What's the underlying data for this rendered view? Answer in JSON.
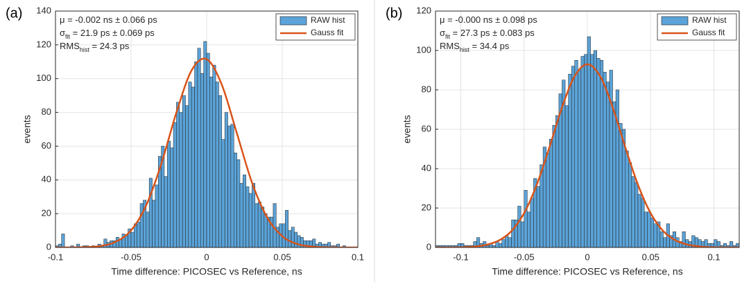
{
  "chart_data": [
    {
      "type": "histogram",
      "panel_label": "(a)",
      "x_label": "Time difference: PICOSEC vs Reference, ns",
      "y_label": "events",
      "annotations": [
        [
          {
            "text": "μ = -0.002 ns ± 0.066 ps"
          }
        ],
        [
          {
            "text": "σ"
          },
          {
            "sub": "fit"
          },
          {
            "text": " = 21.9 ps ± 0.069 ps"
          }
        ],
        [
          {
            "text": "RMS"
          },
          {
            "sub": "hist"
          },
          {
            "text": " = 24.3 ps"
          }
        ]
      ],
      "bins": [
        -0.1,
        -0.098,
        -0.096,
        -0.094,
        -0.092,
        -0.09,
        -0.088,
        -0.086,
        -0.084,
        -0.082,
        -0.08,
        -0.078,
        -0.076,
        -0.074,
        -0.072,
        -0.07,
        -0.068,
        -0.066,
        -0.064,
        -0.062,
        -0.06,
        -0.058,
        -0.056,
        -0.054,
        -0.052,
        -0.05,
        -0.048,
        -0.046,
        -0.044,
        -0.042,
        -0.04,
        -0.038,
        -0.036,
        -0.034,
        -0.032,
        -0.03,
        -0.028,
        -0.026,
        -0.024,
        -0.022,
        -0.02,
        -0.018,
        -0.016,
        -0.014,
        -0.012,
        -0.01,
        -0.008,
        -0.006,
        -0.004,
        -0.002,
        0,
        0.002,
        0.004,
        0.006,
        0.008,
        0.01,
        0.012,
        0.014,
        0.016,
        0.018,
        0.02,
        0.022,
        0.024,
        0.026,
        0.028,
        0.03,
        0.032,
        0.034,
        0.036,
        0.038,
        0.04,
        0.042,
        0.044,
        0.046,
        0.048,
        0.05,
        0.052,
        0.054,
        0.056,
        0.058,
        0.06,
        0.062,
        0.064,
        0.066,
        0.068,
        0.07,
        0.072,
        0.074,
        0.076,
        0.078,
        0.08,
        0.082,
        0.084,
        0.086,
        0.088,
        0.09,
        0.092,
        0.094,
        0.096,
        0.098,
        0.1
      ],
      "series": [
        {
          "name": "RAW hist",
          "color": "#5ba3d8",
          "values": [
            1,
            2,
            8,
            0,
            0,
            1,
            0,
            2,
            0,
            1,
            1,
            0,
            1,
            0,
            2,
            1,
            5,
            3,
            4,
            4,
            6,
            5,
            8,
            7,
            11,
            9,
            14,
            15,
            26,
            28,
            21,
            41,
            28,
            37,
            54,
            60,
            42,
            63,
            59,
            74,
            86,
            80,
            90,
            84,
            98,
            95,
            110,
            118,
            103,
            122,
            115,
            101,
            108,
            98,
            90,
            64,
            80,
            72,
            73,
            56,
            52,
            38,
            43,
            36,
            32,
            38,
            26,
            27,
            24,
            20,
            18,
            18,
            26,
            12,
            14,
            14,
            22,
            10,
            12,
            9,
            7,
            6,
            4,
            4,
            4,
            5,
            2,
            3,
            2,
            2,
            3,
            1,
            1,
            2,
            0,
            1,
            0,
            0,
            0,
            0
          ]
        },
        {
          "name": "Gauss fit",
          "color": "#d95319",
          "type": "line",
          "x": [
            -0.1,
            -0.09,
            -0.08,
            -0.07,
            -0.06,
            -0.05,
            -0.04,
            -0.03,
            -0.02,
            -0.01,
            0,
            0.01,
            0.02,
            0.03,
            0.04,
            0.05,
            0.06,
            0.07,
            0.08,
            0.09,
            0.1
          ],
          "values": [
            0,
            0,
            0.2,
            0.9,
            3.4,
            10.1,
            24.9,
            49.5,
            79.9,
            104.8,
            111.5,
            96.4,
            67.6,
            38.4,
            17.8,
            6.7,
            2,
            0.5,
            0.1,
            0,
            0
          ]
        }
      ],
      "xlim": [
        -0.1,
        0.1
      ],
      "ylim": [
        0,
        140
      ],
      "xticks": [
        -0.1,
        -0.05,
        0,
        0.05,
        0.1
      ],
      "yticks": [
        0,
        20,
        40,
        60,
        80,
        100,
        120,
        140
      ],
      "grid": true,
      "legend": "upper right"
    },
    {
      "type": "histogram",
      "panel_label": "(b)",
      "x_label": "Time difference: PICOSEC vs Reference, ns",
      "y_label": "events",
      "annotations": [
        [
          {
            "text": "μ = -0.000 ns ± 0.098 ps"
          }
        ],
        [
          {
            "text": "σ"
          },
          {
            "sub": "fit"
          },
          {
            "text": " = 27.3 ps ± 0.083 ps"
          }
        ],
        [
          {
            "text": "RMS"
          },
          {
            "sub": "hist"
          },
          {
            "text": " = 34.4 ps"
          }
        ]
      ],
      "bins": [
        -0.12,
        -0.1175,
        -0.115,
        -0.1125,
        -0.11,
        -0.1075,
        -0.105,
        -0.1025,
        -0.1,
        -0.0975,
        -0.095,
        -0.0925,
        -0.09,
        -0.0875,
        -0.085,
        -0.0825,
        -0.08,
        -0.0775,
        -0.075,
        -0.0725,
        -0.07,
        -0.0675,
        -0.065,
        -0.0625,
        -0.06,
        -0.0575,
        -0.055,
        -0.0525,
        -0.05,
        -0.0475,
        -0.045,
        -0.0425,
        -0.04,
        -0.0375,
        -0.035,
        -0.0325,
        -0.03,
        -0.0275,
        -0.025,
        -0.0225,
        -0.02,
        -0.0175,
        -0.015,
        -0.0125,
        -0.01,
        -0.0075,
        -0.005,
        -0.0025,
        0,
        0.0025,
        0.005,
        0.0075,
        0.01,
        0.0125,
        0.015,
        0.0175,
        0.02,
        0.0225,
        0.025,
        0.0275,
        0.03,
        0.0325,
        0.035,
        0.0375,
        0.04,
        0.0425,
        0.045,
        0.0475,
        0.05,
        0.0525,
        0.055,
        0.0575,
        0.06,
        0.0625,
        0.065,
        0.0675,
        0.07,
        0.0725,
        0.075,
        0.0775,
        0.08,
        0.0825,
        0.085,
        0.0875,
        0.09,
        0.0925,
        0.095,
        0.0975,
        0.1,
        0.1025,
        0.105,
        0.1075,
        0.11,
        0.1125,
        0.115,
        0.1175,
        0.12
      ],
      "series": [
        {
          "name": "RAW hist",
          "color": "#5ba3d8",
          "values": [
            1,
            1,
            1,
            1,
            1,
            1,
            1,
            2,
            2,
            1,
            1,
            1,
            3,
            5,
            2,
            3,
            1,
            2,
            1,
            3,
            2,
            4,
            6,
            5,
            14,
            14,
            21,
            13,
            29,
            18,
            25,
            35,
            31,
            42,
            51,
            48,
            55,
            62,
            67,
            78,
            85,
            72,
            88,
            92,
            95,
            90,
            97,
            98,
            107,
            98,
            100,
            96,
            95,
            89,
            84,
            90,
            74,
            80,
            63,
            60,
            49,
            43,
            36,
            33,
            27,
            25,
            18,
            18,
            15,
            12,
            13,
            8,
            5,
            12,
            6,
            8,
            5,
            3,
            8,
            4,
            3,
            6,
            5,
            4,
            3,
            4,
            2,
            2,
            4,
            3,
            1,
            2,
            1,
            3,
            1,
            2
          ]
        },
        {
          "name": "Gauss fit",
          "color": "#d95319",
          "type": "line",
          "x": [
            -0.12,
            -0.11,
            -0.1,
            -0.09,
            -0.08,
            -0.07,
            -0.06,
            -0.05,
            -0.04,
            -0.03,
            -0.02,
            -0.01,
            0,
            0.01,
            0.02,
            0.03,
            0.04,
            0.05,
            0.06,
            0.07,
            0.08,
            0.09,
            0.1,
            0.11,
            0.12
          ],
          "values": [
            0,
            0,
            0.1,
            0.4,
            1.3,
            3.5,
            8.3,
            17.4,
            31.8,
            50.8,
            71.1,
            87,
            93,
            87,
            71.1,
            50.8,
            31.8,
            17.4,
            8.3,
            3.5,
            1.3,
            0.4,
            0.1,
            0,
            0
          ]
        }
      ],
      "xlim": [
        -0.12,
        0.12
      ],
      "ylim": [
        0,
        120
      ],
      "xticks": [
        -0.1,
        -0.05,
        0,
        0.05,
        0.1
      ],
      "yticks": [
        0,
        20,
        40,
        60,
        80,
        100,
        120
      ],
      "grid": true,
      "legend": "upper right"
    }
  ]
}
